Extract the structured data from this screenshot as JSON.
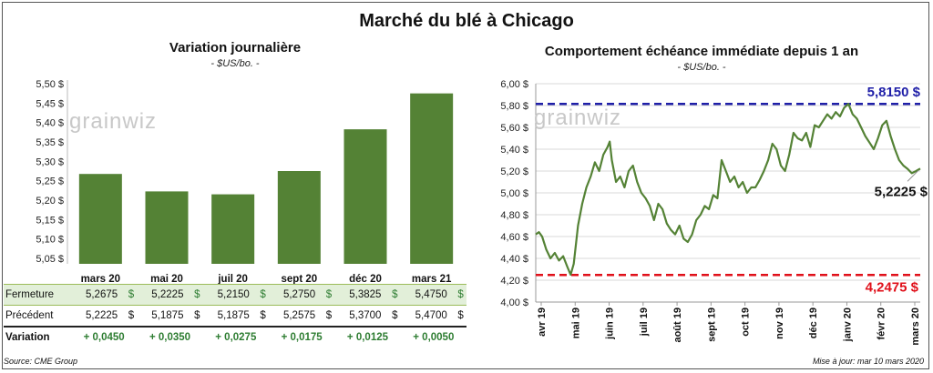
{
  "title": "Marché du blé à Chicago",
  "left_chart": {
    "title": "Variation journalière",
    "subtitle": "- $US/bo. -"
  },
  "right_chart": {
    "title": "Comportement  échéance immédiate depuis 1 an",
    "subtitle": "- $US/bo. -"
  },
  "watermark": "grainwiz",
  "table": {
    "row_labels": [
      "Fermeture",
      "Précédent",
      "Variation"
    ],
    "fermeture": [
      "5,2675",
      "5,2225",
      "5,2150",
      "5,2750",
      "5,3825",
      "5,4750"
    ],
    "precedent": [
      "5,2225",
      "5,1875",
      "5,1875",
      "5,2575",
      "5,3700",
      "5,4700"
    ],
    "variation": [
      "+ 0,0450",
      "+ 0,0350",
      "+ 0,0275",
      "+ 0,0175",
      "+ 0,0125",
      "+ 0,0050"
    ],
    "currency": "$"
  },
  "footer": {
    "source": "Source: CME Group",
    "update": "Mise à jour: mar 10 mars 2020"
  },
  "colors": {
    "bar": "#548235",
    "line": "#548235",
    "high_line": "#1f1fa8",
    "low_line": "#e0101a",
    "table_highlight": "#e2efd9",
    "positive": "#2e7d32"
  },
  "chart_data": [
    {
      "type": "bar",
      "title": "Variation journalière",
      "subtitle": "- $US/bo. -",
      "categories": [
        "mars 20",
        "mai 20",
        "juil 20",
        "sept 20",
        "déc 20",
        "mars 21"
      ],
      "values": [
        5.2675,
        5.2225,
        5.215,
        5.275,
        5.3825,
        5.475
      ],
      "yticks": [
        "5,05 $",
        "5,10 $",
        "5,15 $",
        "5,20 $",
        "5,25 $",
        "5,30 $",
        "5,35 $",
        "5,40 $",
        "5,45 $",
        "5,50 $"
      ],
      "ylim": [
        5.05,
        5.5
      ],
      "grid": false
    },
    {
      "type": "line",
      "title": "Comportement  échéance immédiate depuis 1 an",
      "subtitle": "- $US/bo. -",
      "xticks": [
        "avr 19",
        "mai 19",
        "juin 19",
        "juil 19",
        "août 19",
        "sept 19",
        "oct 19",
        "nov 19",
        "déc 19",
        "janv 20",
        "févr 20",
        "mars 20"
      ],
      "yticks": [
        "4,00 $",
        "4,20 $",
        "4,40 $",
        "4,60 $",
        "4,80 $",
        "5,00 $",
        "5,20 $",
        "5,40 $",
        "5,60 $",
        "5,80 $",
        "6,00 $"
      ],
      "ylim": [
        4.0,
        6.0
      ],
      "grid": true,
      "high": {
        "value": 5.815,
        "label": "5,8150 $"
      },
      "low": {
        "value": 4.2475,
        "label": "4,2475 $"
      },
      "last": {
        "value": 5.2225,
        "label": "5,2225 $"
      },
      "x": [
        0,
        3,
        6,
        10,
        14,
        18,
        22,
        26,
        30,
        33,
        36,
        40,
        44,
        48,
        52,
        56,
        60,
        64,
        68,
        70,
        72,
        76,
        80,
        84,
        88,
        92,
        96,
        100,
        104,
        108,
        112,
        116,
        120,
        124,
        128,
        132,
        136,
        140,
        144,
        148,
        152,
        156,
        160,
        164,
        168,
        172,
        176,
        180,
        184,
        188,
        192,
        196,
        200,
        204,
        208,
        212,
        216,
        220,
        224,
        228,
        232,
        236,
        240,
        244,
        248,
        252,
        256,
        260,
        264,
        268,
        272,
        276,
        280,
        284,
        288,
        292,
        296,
        300,
        304,
        308,
        312,
        316,
        320,
        324,
        328,
        332,
        336,
        340,
        344,
        348,
        352,
        356,
        360,
        364
      ],
      "y": [
        4.62,
        4.64,
        4.6,
        4.48,
        4.4,
        4.45,
        4.38,
        4.42,
        4.32,
        4.25,
        4.35,
        4.7,
        4.9,
        5.05,
        5.15,
        5.28,
        5.2,
        5.35,
        5.42,
        5.47,
        5.3,
        5.1,
        5.15,
        5.05,
        5.2,
        5.25,
        5.1,
        5.0,
        4.95,
        4.88,
        4.75,
        4.9,
        4.85,
        4.72,
        4.66,
        4.62,
        4.7,
        4.58,
        4.55,
        4.62,
        4.75,
        4.8,
        4.88,
        4.85,
        4.98,
        4.95,
        5.3,
        5.2,
        5.1,
        5.15,
        5.05,
        5.1,
        5.0,
        5.05,
        5.05,
        5.12,
        5.2,
        5.3,
        5.45,
        5.4,
        5.25,
        5.2,
        5.35,
        5.55,
        5.5,
        5.48,
        5.55,
        5.42,
        5.62,
        5.6,
        5.66,
        5.72,
        5.68,
        5.74,
        5.7,
        5.78,
        5.815,
        5.72,
        5.68,
        5.6,
        5.52,
        5.46,
        5.4,
        5.5,
        5.62,
        5.66,
        5.52,
        5.4,
        5.3,
        5.25,
        5.22,
        5.18,
        5.2,
        5.2225
      ]
    }
  ]
}
